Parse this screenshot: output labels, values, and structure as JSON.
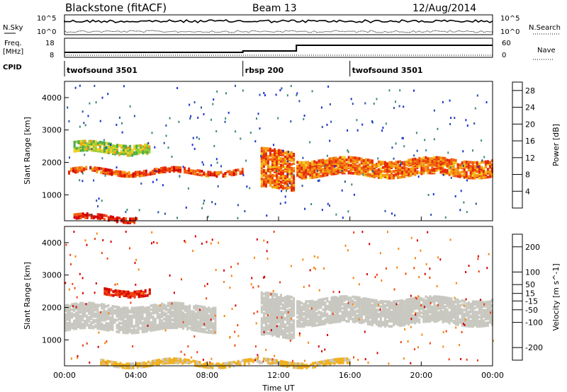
{
  "header": {
    "radar": "Blackstone (fitACF)",
    "beam": "Beam 13",
    "date": "12/Aug/2014"
  },
  "noise_panel": {
    "left_label": "N.Sky",
    "right_label": "N.Search",
    "left_ticks": [
      "10^5",
      "10^0"
    ],
    "right_ticks": [
      "10^5",
      "10^0"
    ]
  },
  "freq_panel": {
    "left_label_line1": "Freq.",
    "left_label_line2": "[MHz]",
    "right_label": "Nave",
    "left_ticks": [
      "18",
      "8"
    ],
    "right_ticks": [
      "60",
      "0"
    ]
  },
  "cpid_panel": {
    "label": "CPID",
    "segments": [
      {
        "name": "twofsound 3501",
        "start_h": 0,
        "end_h": 10
      },
      {
        "name": "rbsp 200",
        "start_h": 10,
        "end_h": 16
      },
      {
        "name": "twofsound 3501",
        "start_h": 16,
        "end_h": 24
      }
    ]
  },
  "colors": {
    "power_scale": [
      "#1a2fd6",
      "#2a4fa8",
      "#3a8a7a",
      "#4aae4a",
      "#9acd32",
      "#f0d020",
      "#f59a10",
      "#f06010",
      "#e52a0a",
      "#d40000"
    ],
    "velocity_scale": [
      "#d40000",
      "#f04010",
      "#f5860f",
      "#f0b020",
      "#c8c8c0",
      "#c8c8c0",
      "#7ad040",
      "#3a9a3a",
      "#2a5ab0",
      "#1a2fd6"
    ]
  },
  "chart_data": [
    {
      "type": "heatmap",
      "title": "",
      "xlabel": "Time UT",
      "ylabel": "Slant Range [km]",
      "xlim": [
        0,
        24
      ],
      "ylim": [
        200,
        4500
      ],
      "x_ticks": [
        "00:00",
        "04:00",
        "08:00",
        "12:00",
        "16:00",
        "20:00",
        "00:00"
      ],
      "y_ticks": [
        "1000",
        "2000",
        "3000",
        "4000"
      ],
      "colorbar_label": "Power [dB]",
      "colorbar_ticks": [
        "4",
        "8",
        "12",
        "16",
        "20",
        "24",
        "28"
      ],
      "colorbar_range": [
        0,
        30
      ],
      "bands": [
        {
          "t": [
            0.2,
            10.0
          ],
          "range": [
            1650,
            1800
          ],
          "value": 24
        },
        {
          "t": [
            0.5,
            4.8
          ],
          "range": [
            2300,
            2600
          ],
          "value": 14
        },
        {
          "t": [
            11.0,
            12.9
          ],
          "range": [
            1200,
            2400
          ],
          "value": 22
        },
        {
          "t": [
            13.0,
            24.0
          ],
          "range": [
            1600,
            2100
          ],
          "value": 22
        },
        {
          "t": [
            0.5,
            4.0
          ],
          "range": [
            220,
            350
          ],
          "value": 27
        }
      ]
    },
    {
      "type": "heatmap",
      "title": "",
      "xlabel": "Time UT",
      "ylabel": "Slant Range [km]",
      "xlim": [
        0,
        24
      ],
      "ylim": [
        200,
        4500
      ],
      "x_ticks": [
        "00:00",
        "04:00",
        "08:00",
        "12:00",
        "16:00",
        "20:00",
        "00:00"
      ],
      "y_ticks": [
        "1000",
        "2000",
        "3000",
        "4000"
      ],
      "colorbar_label": "Velocity [m s^-1]",
      "colorbar_ticks": [
        "200",
        "100",
        "50",
        "15",
        "-15",
        "-50",
        "-100",
        "-200"
      ],
      "colorbar_range": [
        -250,
        250
      ],
      "bands": [
        {
          "t": [
            0.0,
            8.5
          ],
          "range": [
            1300,
            2100
          ],
          "value": 0
        },
        {
          "t": [
            2.2,
            4.8
          ],
          "range": [
            2400,
            2600
          ],
          "value": -200
        },
        {
          "t": [
            11.0,
            12.9
          ],
          "range": [
            1100,
            2400
          ],
          "value": 0
        },
        {
          "t": [
            13.0,
            24.0
          ],
          "range": [
            1500,
            2300
          ],
          "value": 0
        },
        {
          "t": [
            2.0,
            16.0
          ],
          "range": [
            220,
            350
          ],
          "value": -60
        }
      ]
    }
  ]
}
